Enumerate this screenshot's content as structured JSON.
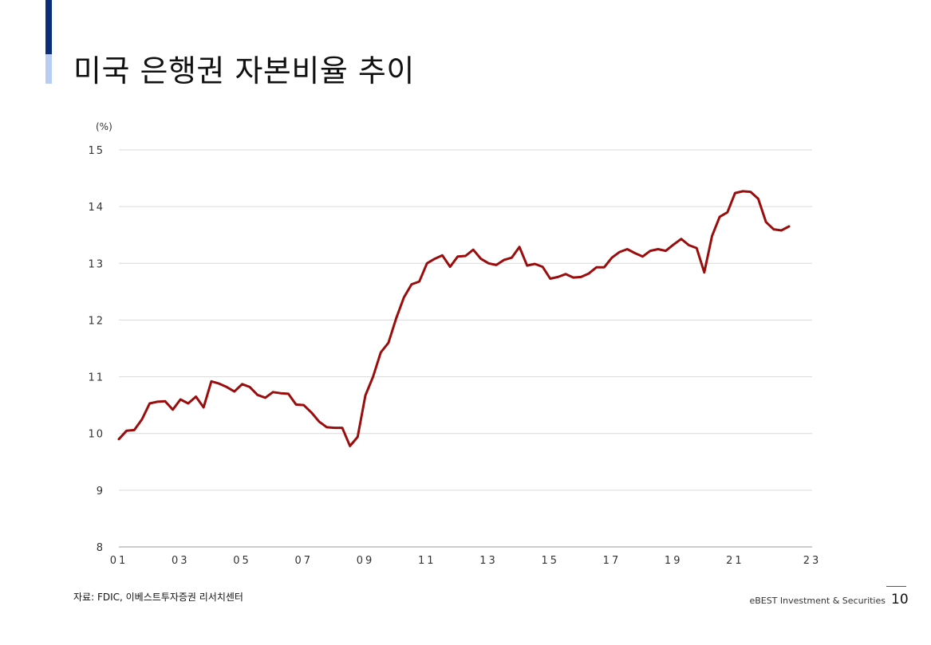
{
  "page": {
    "title": "미국 은행권 자본비율 추이",
    "source": "자료: FDIC, 이베스트투자증권 리서치센터",
    "brand": "eBEST Investment & Securities",
    "page_number": "10"
  },
  "colors": {
    "accent_dark": "#0b2d7a",
    "accent_light": "#b9cdf2",
    "line": "#9b0d0d",
    "grid": "#d9d9d9"
  },
  "chart_data": {
    "type": "line",
    "ylabel": "(%)",
    "ylim": [
      8,
      15
    ],
    "yticks": [
      8,
      9,
      10,
      11,
      12,
      13,
      14,
      15
    ],
    "xlim": [
      2001,
      2023.5
    ],
    "xticks": [
      {
        "pos": 2001,
        "label": "01"
      },
      {
        "pos": 2003,
        "label": "03"
      },
      {
        "pos": 2005,
        "label": "05"
      },
      {
        "pos": 2007,
        "label": "07"
      },
      {
        "pos": 2009,
        "label": "09"
      },
      {
        "pos": 2011,
        "label": "11"
      },
      {
        "pos": 2013,
        "label": "13"
      },
      {
        "pos": 2015,
        "label": "15"
      },
      {
        "pos": 2017,
        "label": "17"
      },
      {
        "pos": 2019,
        "label": "19"
      },
      {
        "pos": 2021,
        "label": "21"
      },
      {
        "pos": 2023.5,
        "label": "23"
      }
    ],
    "grid": true,
    "legend": "none",
    "series": [
      {
        "x": [
          2001.0,
          2001.25,
          2001.5,
          2001.75,
          2002.0,
          2002.25,
          2002.5,
          2002.75,
          2003.0,
          2003.25,
          2003.5,
          2003.75,
          2004.0,
          2004.25,
          2004.5,
          2004.75,
          2005.0,
          2005.25,
          2005.5,
          2005.75,
          2006.0,
          2006.25,
          2006.5,
          2006.75,
          2007.0,
          2007.25,
          2007.5,
          2007.75,
          2008.0,
          2008.25,
          2008.5,
          2008.75,
          2009.0,
          2009.25,
          2009.5,
          2009.75,
          2010.0,
          2010.25,
          2010.5,
          2010.75,
          2011.0,
          2011.25,
          2011.5,
          2011.75,
          2012.0,
          2012.25,
          2012.5,
          2012.75,
          2013.0,
          2013.25,
          2013.5,
          2013.75,
          2014.0,
          2014.25,
          2014.5,
          2014.75,
          2015.0,
          2015.25,
          2015.5,
          2015.75,
          2016.0,
          2016.25,
          2016.5,
          2016.75,
          2017.0,
          2017.25,
          2017.5,
          2017.75,
          2018.0,
          2018.25,
          2018.5,
          2018.75,
          2019.0,
          2019.25,
          2019.5,
          2019.75,
          2020.0,
          2020.25,
          2020.5,
          2020.75,
          2021.0,
          2021.25,
          2021.5,
          2021.75,
          2022.0,
          2022.25,
          2022.5,
          2022.75
        ],
        "values": [
          9.9,
          10.05,
          10.06,
          10.25,
          10.53,
          10.56,
          10.57,
          10.42,
          10.6,
          10.53,
          10.65,
          10.46,
          10.92,
          10.88,
          10.82,
          10.74,
          10.87,
          10.82,
          10.68,
          10.63,
          10.73,
          10.71,
          10.7,
          10.51,
          10.5,
          10.37,
          10.21,
          10.11,
          10.1,
          10.1,
          9.78,
          9.94,
          10.67,
          11.0,
          11.43,
          11.6,
          12.03,
          12.4,
          12.63,
          12.68,
          13.0,
          13.08,
          13.14,
          12.94,
          13.12,
          13.13,
          13.24,
          13.08,
          13.0,
          12.97,
          13.06,
          13.1,
          13.29,
          12.96,
          12.99,
          12.94,
          12.73,
          12.76,
          12.81,
          12.75,
          12.76,
          12.82,
          12.93,
          12.93,
          13.1,
          13.2,
          13.25,
          13.18,
          13.12,
          13.22,
          13.25,
          13.22,
          13.33,
          13.43,
          13.32,
          13.27,
          12.84,
          13.48,
          13.82,
          13.9,
          14.24,
          14.27,
          14.26,
          14.14,
          13.73,
          13.6,
          13.58,
          13.65
        ]
      }
    ]
  }
}
